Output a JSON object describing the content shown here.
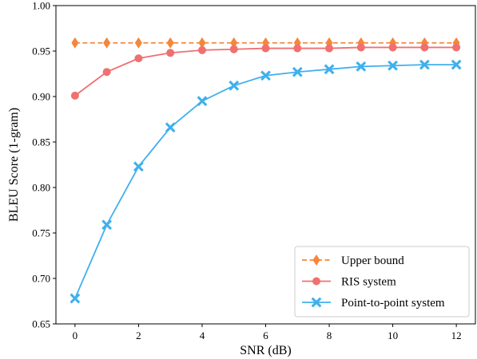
{
  "chart_data": {
    "type": "line",
    "title": "",
    "xlabel": "SNR (dB)",
    "ylabel": "BLEU Score (1-gram)",
    "xlim": [
      -0.6,
      12.6
    ],
    "ylim": [
      0.65,
      1.0
    ],
    "xticks": [
      0,
      2,
      4,
      6,
      8,
      10,
      12
    ],
    "yticks": [
      0.65,
      0.7,
      0.75,
      0.8,
      0.85,
      0.9,
      0.95,
      1.0
    ],
    "ytick_labels": [
      "0.65",
      "0.70",
      "0.75",
      "0.80",
      "0.85",
      "0.90",
      "0.95",
      "1.00"
    ],
    "grid": false,
    "legend_position": "bottom-right",
    "x": [
      0,
      1,
      2,
      3,
      4,
      5,
      6,
      7,
      8,
      9,
      10,
      11,
      12
    ],
    "series": [
      {
        "name": "Upper bound",
        "color": "#f5873a",
        "line_style": "dashed",
        "marker": "diamond",
        "values": [
          0.959,
          0.959,
          0.959,
          0.959,
          0.959,
          0.959,
          0.959,
          0.959,
          0.959,
          0.959,
          0.959,
          0.959,
          0.959
        ]
      },
      {
        "name": "RIS system",
        "color": "#f07070",
        "line_style": "solid",
        "marker": "circle",
        "values": [
          0.901,
          0.927,
          0.942,
          0.948,
          0.951,
          0.952,
          0.953,
          0.953,
          0.953,
          0.954,
          0.954,
          0.954,
          0.954
        ]
      },
      {
        "name": "Point-to-point system",
        "color": "#3fb0ee",
        "line_style": "solid",
        "marker": "x",
        "values": [
          0.678,
          0.759,
          0.823,
          0.866,
          0.895,
          0.912,
          0.923,
          0.927,
          0.93,
          0.933,
          0.934,
          0.935,
          0.935
        ]
      }
    ]
  }
}
